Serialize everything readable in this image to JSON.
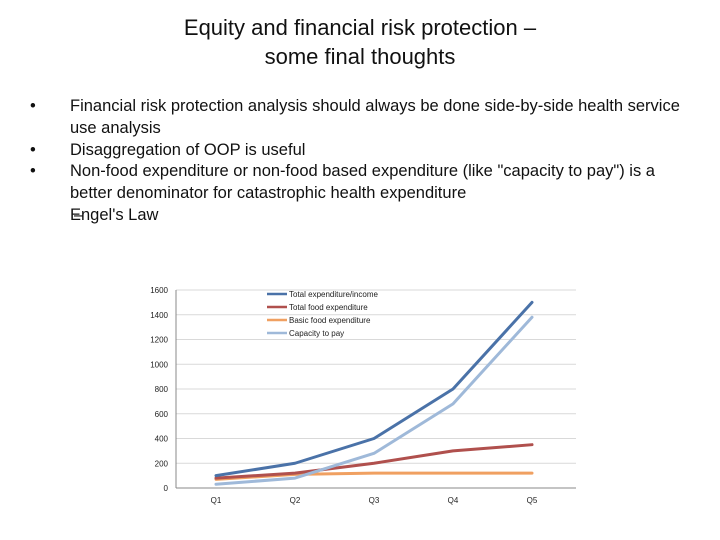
{
  "slide": {
    "title_line1": "Equity and financial risk protection –",
    "title_line2": "some final thoughts",
    "bullets": [
      "Financial risk protection analysis should always be done side-by-side health service use analysis",
      "Disaggregation of OOP is useful",
      "Non-food expenditure or non-food based expenditure (like \"capacity to pay\") is a better denominator for catastrophic health expenditure"
    ],
    "bullet_symbol": "•",
    "sub_bullet_symbol": "–",
    "sub_bullet": "Engel's Law"
  },
  "chart_data": {
    "type": "line",
    "categories": [
      "Q1",
      "Q2",
      "Q3",
      "Q4",
      "Q5"
    ],
    "ylim": [
      0,
      1600
    ],
    "yticks": [
      0,
      200,
      400,
      600,
      800,
      1000,
      1200,
      1400,
      1600
    ],
    "ytick_labels": [
      "0",
      "200",
      "400",
      "600",
      "800",
      "1000",
      "1200",
      "1400",
      "1600"
    ],
    "grid": true,
    "legend_position": "top-center",
    "series": [
      {
        "name": "Total expenditure/income",
        "color": "#4a72a8",
        "values": [
          100,
          200,
          400,
          800,
          1500
        ]
      },
      {
        "name": "Total food expenditure",
        "color": "#b0504d",
        "values": [
          80,
          120,
          200,
          300,
          350
        ]
      },
      {
        "name": "Basic food expenditure",
        "color": "#f0a061",
        "values": [
          70,
          110,
          120,
          120,
          120
        ]
      },
      {
        "name": "Capacity to pay",
        "color": "#9fb9d9",
        "values": [
          30,
          80,
          280,
          680,
          1380
        ]
      }
    ]
  }
}
